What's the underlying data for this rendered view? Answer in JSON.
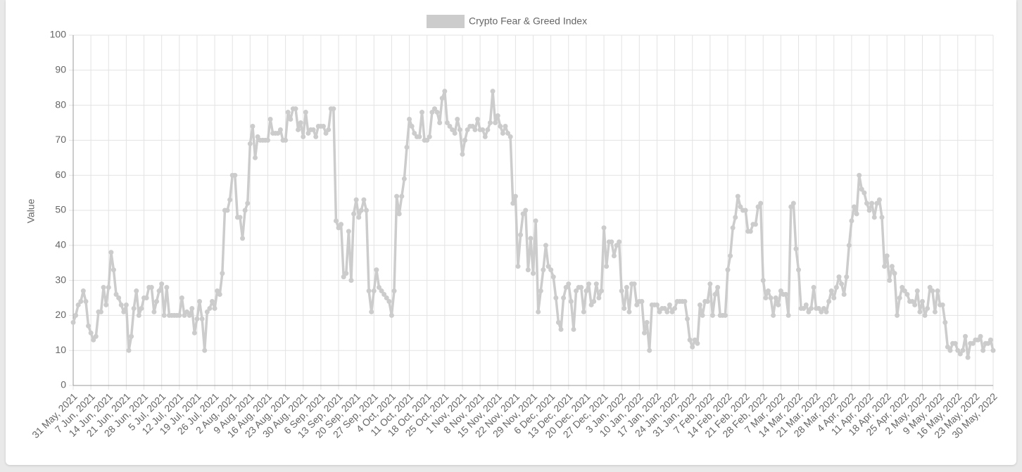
{
  "chart_data": {
    "type": "line",
    "y_label": "Value",
    "ylim": [
      0,
      100
    ],
    "yticks": [
      0,
      10,
      20,
      30,
      40,
      50,
      60,
      70,
      80,
      90,
      100
    ],
    "grid": true,
    "legend": "top",
    "categories": [
      "31 May, 2021",
      null,
      null,
      null,
      null,
      null,
      null,
      "7 Jun, 2021",
      null,
      null,
      null,
      null,
      null,
      null,
      "14 Jun, 2021",
      null,
      null,
      null,
      null,
      null,
      null,
      "21 Jun, 2021",
      null,
      null,
      null,
      null,
      null,
      null,
      "28 Jun, 2021",
      null,
      null,
      null,
      null,
      null,
      null,
      "5 Jul, 2021",
      null,
      null,
      null,
      null,
      null,
      null,
      "12 Jul, 2021",
      null,
      null,
      null,
      null,
      null,
      null,
      "19 Jul, 2021",
      null,
      null,
      null,
      null,
      null,
      null,
      "26 Jul, 2021",
      null,
      null,
      null,
      null,
      null,
      null,
      "2 Aug, 2021",
      null,
      null,
      null,
      null,
      null,
      null,
      "9 Aug, 2021",
      null,
      null,
      null,
      null,
      null,
      null,
      "16 Aug, 2021",
      null,
      null,
      null,
      null,
      null,
      null,
      "23 Aug, 2021",
      null,
      null,
      null,
      null,
      null,
      null,
      "30 Aug, 2021",
      null,
      null,
      null,
      null,
      null,
      null,
      "6 Sep, 2021",
      null,
      null,
      null,
      null,
      null,
      null,
      "13 Sep, 2021",
      null,
      null,
      null,
      null,
      null,
      null,
      "20 Sep, 2021",
      null,
      null,
      null,
      null,
      null,
      null,
      "27 Sep, 2021",
      null,
      null,
      null,
      null,
      null,
      null,
      "4 Oct, 2021",
      null,
      null,
      null,
      null,
      null,
      null,
      "11 Oct, 2021",
      null,
      null,
      null,
      null,
      null,
      null,
      "18 Oct, 2021",
      null,
      null,
      null,
      null,
      null,
      null,
      "25 Oct, 2021",
      null,
      null,
      null,
      null,
      null,
      null,
      "1 Nov, 2021",
      null,
      null,
      null,
      null,
      null,
      null,
      "8 Nov, 2021",
      null,
      null,
      null,
      null,
      null,
      null,
      "15 Nov, 2021",
      null,
      null,
      null,
      null,
      null,
      null,
      "22 Nov, 2021",
      null,
      null,
      null,
      null,
      null,
      null,
      "29 Nov, 2021",
      null,
      null,
      null,
      null,
      null,
      null,
      "6 Dec, 2021",
      null,
      null,
      null,
      null,
      null,
      null,
      "13 Dec, 2021",
      null,
      null,
      null,
      null,
      null,
      null,
      "20 Dec, 2021",
      null,
      null,
      null,
      null,
      null,
      null,
      "27 Dec, 2021",
      null,
      null,
      null,
      null,
      null,
      null,
      "3 Jan, 2022",
      null,
      null,
      null,
      null,
      null,
      null,
      "10 Jan, 2022",
      null,
      null,
      null,
      null,
      null,
      null,
      "17 Jan, 2022",
      null,
      null,
      null,
      null,
      null,
      null,
      "24 Jan, 2022",
      null,
      null,
      null,
      null,
      null,
      null,
      "31 Jan, 2022",
      null,
      null,
      null,
      null,
      null,
      null,
      "7 Feb, 2022",
      null,
      null,
      null,
      null,
      null,
      null,
      "14 Feb, 2022",
      null,
      null,
      null,
      null,
      null,
      null,
      "21 Feb, 2022",
      null,
      null,
      null,
      null,
      null,
      null,
      "28 Feb, 2022",
      null,
      null,
      null,
      null,
      null,
      null,
      "7 Mar, 2022",
      null,
      null,
      null,
      null,
      null,
      null,
      "14 Mar, 2022",
      null,
      null,
      null,
      null,
      null,
      null,
      "21 Mar, 2022",
      null,
      null,
      null,
      null,
      null,
      null,
      "28 Mar, 2022",
      null,
      null,
      null,
      null,
      null,
      null,
      "4 Apr, 2022",
      null,
      null,
      null,
      null,
      null,
      null,
      "11 Apr, 2022",
      null,
      null,
      null,
      null,
      null,
      null,
      "18 Apr, 2022",
      null,
      null,
      null,
      null,
      null,
      null,
      "25 Apr, 2022",
      null,
      null,
      null,
      null,
      null,
      null,
      "2 May, 2022",
      null,
      null,
      null,
      null,
      null,
      null,
      "9 May, 2022",
      null,
      null,
      null,
      null,
      null,
      null,
      "16 May, 2022",
      null,
      null,
      null,
      null,
      null,
      null,
      "23 May, 2022",
      null,
      null,
      null,
      null,
      null,
      null,
      "30 May, 2022"
    ],
    "series": [
      {
        "name": "Crypto Fear & Greed Index",
        "color": "#cccccc",
        "values": [
          18,
          20,
          23,
          24,
          27,
          24,
          17,
          15,
          13,
          14,
          21,
          21,
          28,
          23,
          28,
          38,
          33,
          26,
          25,
          23,
          21,
          23,
          10,
          14,
          22,
          27,
          20,
          22,
          25,
          25,
          28,
          28,
          21,
          24,
          27,
          29,
          20,
          28,
          20,
          20,
          20,
          20,
          20,
          25,
          20,
          21,
          20,
          22,
          15,
          19,
          24,
          19,
          10,
          21,
          22,
          24,
          22,
          27,
          26,
          32,
          50,
          50,
          53,
          60,
          60,
          48,
          48,
          42,
          50,
          52,
          69,
          74,
          65,
          71,
          70,
          70,
          70,
          70,
          76,
          72,
          72,
          72,
          73,
          70,
          70,
          78,
          76,
          79,
          79,
          73,
          75,
          71,
          78,
          72,
          73,
          73,
          71,
          74,
          74,
          74,
          72,
          73,
          79,
          79,
          47,
          45,
          46,
          31,
          32,
          44,
          30,
          49,
          53,
          48,
          50,
          53,
          50,
          27,
          21,
          27,
          33,
          28,
          27,
          26,
          25,
          24,
          20,
          27,
          54,
          49,
          54,
          59,
          68,
          76,
          74,
          72,
          71,
          71,
          78,
          70,
          70,
          71,
          78,
          79,
          78,
          75,
          82,
          84,
          75,
          74,
          73,
          72,
          76,
          73,
          66,
          70,
          73,
          74,
          74,
          73,
          76,
          73,
          73,
          71,
          73,
          75,
          84,
          75,
          77,
          74,
          72,
          74,
          72,
          71,
          52,
          54,
          34,
          43,
          49,
          50,
          33,
          42,
          32,
          47,
          21,
          27,
          33,
          40,
          34,
          33,
          31,
          25,
          18,
          16,
          25,
          28,
          29,
          24,
          16,
          27,
          28,
          28,
          21,
          27,
          29,
          23,
          24,
          29,
          25,
          27,
          45,
          34,
          41,
          41,
          37,
          40,
          41,
          27,
          22,
          28,
          21,
          29,
          29,
          23,
          24,
          24,
          15,
          18,
          10,
          23,
          23,
          23,
          21,
          22,
          22,
          21,
          23,
          21,
          22,
          24,
          24,
          24,
          24,
          19,
          13,
          11,
          13,
          12,
          23,
          20,
          24,
          24,
          29,
          20,
          26,
          28,
          20,
          20,
          20,
          33,
          37,
          45,
          48,
          54,
          51,
          50,
          50,
          44,
          44,
          46,
          46,
          51,
          52,
          30,
          25,
          27,
          25,
          20,
          25,
          23,
          27,
          26,
          26,
          20,
          51,
          52,
          39,
          33,
          22,
          22,
          23,
          21,
          22,
          28,
          22,
          22,
          21,
          22,
          21,
          24,
          27,
          25,
          28,
          31,
          29,
          26,
          31,
          40,
          47,
          51,
          49,
          60,
          56,
          55,
          52,
          50,
          52,
          48,
          52,
          53,
          48,
          34,
          37,
          30,
          34,
          32,
          20,
          25,
          28,
          27,
          26,
          24,
          24,
          23,
          27,
          21,
          24,
          20,
          22,
          28,
          27,
          21,
          27,
          23,
          23,
          18,
          11,
          10,
          12,
          12,
          10,
          9,
          10,
          14,
          8,
          12,
          12,
          13,
          13,
          14,
          10,
          12,
          12,
          13,
          10
        ]
      }
    ]
  }
}
